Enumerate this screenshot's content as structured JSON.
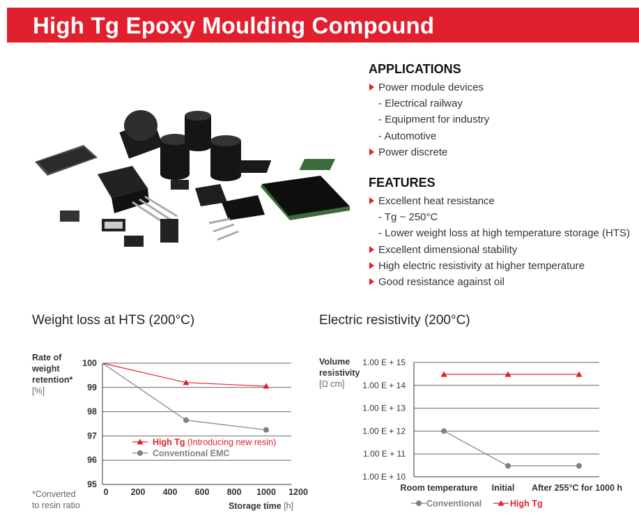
{
  "header": {
    "title": "High Tg Epoxy Moulding Compound"
  },
  "applications": {
    "heading": "APPLICATIONS",
    "items": [
      {
        "text": "Power module devices",
        "level": 1
      },
      {
        "text": "- Electrical railway",
        "level": 2
      },
      {
        "text": "- Equipment for industry",
        "level": 2
      },
      {
        "text": "- Automotive",
        "level": 2
      },
      {
        "text": "Power discrete",
        "level": 1
      }
    ]
  },
  "features": {
    "heading": "FEATURES",
    "items": [
      {
        "text": "Excellent heat resistance",
        "level": 1
      },
      {
        "text": "- Tg ~ 250°C",
        "level": 2
      },
      {
        "text": "- Lower weight loss at high temperature storage (HTS)",
        "level": 2
      },
      {
        "text": "Excellent dimensional stability",
        "level": 1
      },
      {
        "text": "High electric resistivity at higher temperature",
        "level": 1
      },
      {
        "text": "Good resistance against oil",
        "level": 1
      }
    ]
  },
  "colors": {
    "accent": "#e21f2c",
    "conventional": "#808080",
    "grid": "#555555"
  },
  "chart_data": [
    {
      "type": "line",
      "title": "Weight loss at HTS (200°C)",
      "ylabel_lines": [
        "Rate of",
        "weight",
        "retention*"
      ],
      "ylabel_unit": "[%]",
      "xlabel": "Storage time",
      "xlabel_unit": "[h]",
      "footnote_lines": [
        "*Converted",
        "to resin ratio"
      ],
      "ylim": [
        95,
        100
      ],
      "xlim": [
        0,
        1200
      ],
      "yticks": [
        "95",
        "96",
        "97",
        "98",
        "99",
        "100"
      ],
      "xticks": [
        "0",
        "200",
        "400",
        "600",
        "800",
        "1000",
        "1200"
      ],
      "grid": true,
      "legend_position": "lower-middle",
      "series": [
        {
          "name": "High Tg",
          "note": "(Introducing new resin)",
          "color": "#e21f2c",
          "marker": "triangle",
          "x": [
            0,
            500,
            1000
          ],
          "y": [
            100,
            99.2,
            99.05
          ]
        },
        {
          "name": "Conventional EMC",
          "color": "#808080",
          "marker": "circle",
          "x": [
            0,
            500,
            1000
          ],
          "y": [
            100,
            97.65,
            97.25
          ]
        }
      ]
    },
    {
      "type": "line",
      "title": "Electric resistivity (200°C)",
      "ylabel_lines": [
        "Volume",
        "resistivity"
      ],
      "ylabel_unit": "[Ω cm]",
      "yscale": "log",
      "ylim": [
        10000000000.0,
        1000000000000000.0
      ],
      "yticks": [
        "1.00 E + 10",
        "1.00 E + 11",
        "1.00 E + 12",
        "1.00 E + 13",
        "1.00 E + 14",
        "1.00 E + 15"
      ],
      "categories": [
        "Room temperature",
        "Initial",
        "After 255°C for 1000 h"
      ],
      "grid": true,
      "legend_position": "bottom",
      "series": [
        {
          "name": "Conventional",
          "color": "#808080",
          "marker": "circle",
          "values": [
            1000000000000.0,
            30000000000.0,
            30000000000.0
          ]
        },
        {
          "name": "High Tg",
          "color": "#e21f2c",
          "marker": "triangle",
          "values": [
            300000000000000.0,
            300000000000000.0,
            300000000000000.0
          ]
        }
      ]
    }
  ]
}
